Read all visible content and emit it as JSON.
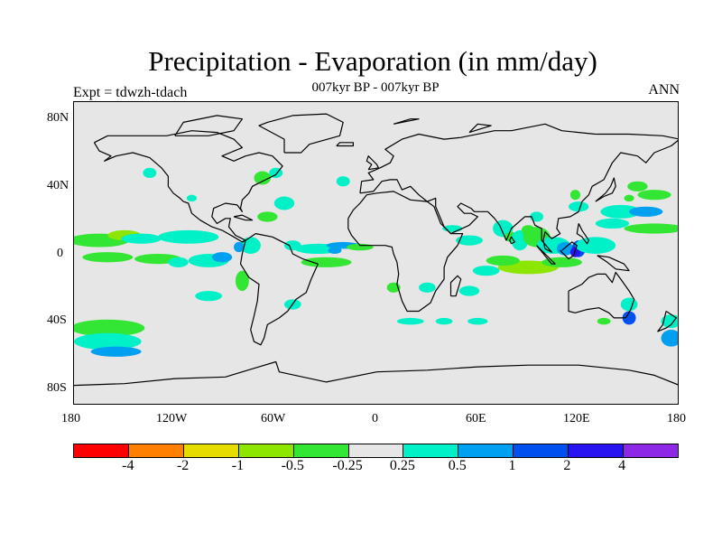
{
  "title": "Precipitation - Evaporation (in mm/day)",
  "subtitle": "007kyr BP - 007kyr BP",
  "left_label": "Expt = tdwzh-tdach",
  "right_label": "ANN",
  "lat_labels": [
    "80N",
    "40N",
    "0",
    "40S",
    "80S"
  ],
  "lon_labels": [
    "180",
    "120W",
    "60W",
    "0",
    "60E",
    "120E",
    "180"
  ],
  "map": {
    "background": "#e6e6e6",
    "coastline_color": "#000000",
    "lon_range": [
      -180,
      180
    ],
    "lat_range": [
      -90,
      90
    ]
  },
  "colorbar": {
    "colors": [
      "#ff0000",
      "#ff8000",
      "#e6dc00",
      "#8ce600",
      "#33e633",
      "#e6e6e6",
      "#00f0c8",
      "#00a0f0",
      "#0050f0",
      "#2814f0",
      "#8c28e6"
    ],
    "labels": [
      "-4",
      "-2",
      "-1",
      "-0.5",
      "-0.25",
      "0.25",
      "0.5",
      "1",
      "2",
      "4"
    ]
  }
}
